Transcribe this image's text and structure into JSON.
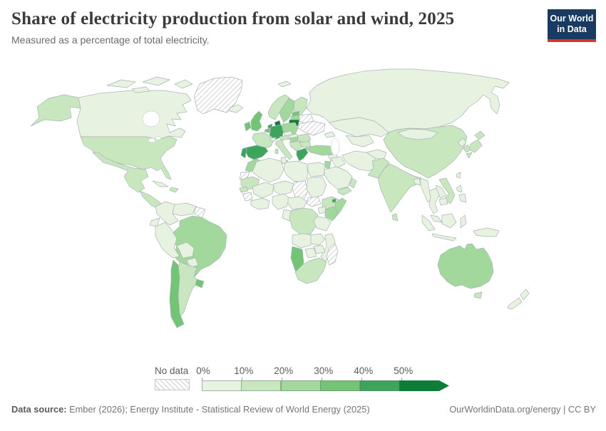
{
  "header": {
    "title": "Share of electricity production from solar and wind, 2025",
    "subtitle": "Measured as a percentage of total electricity."
  },
  "logo": {
    "line1": "Our World",
    "line2": "in Data"
  },
  "legend": {
    "no_data_label": "No data",
    "ticks": [
      "0%",
      "10%",
      "20%",
      "30%",
      "40%",
      "50%"
    ],
    "band_order": [
      "b1",
      "b2",
      "b3",
      "b4",
      "b5",
      "b6"
    ],
    "band_labels": [
      "0-10%",
      "10-20%",
      "20-30%",
      "30-40%",
      "40-50%",
      "50%+"
    ]
  },
  "footer": {
    "source_label": "Data source:",
    "source_text": " Ember (2026); Energy Institute - Statistical Review of World Energy (2025)",
    "link": "OurWorldinData.org/energy",
    "separator": " | ",
    "license": "CC BY"
  },
  "map": {
    "palette": {
      "b1": "#e7f3e0",
      "b2": "#c9e7bf",
      "b3": "#a2d89b",
      "b4": "#74c476",
      "b5": "#3ca55b",
      "b6": "#0f7d38"
    },
    "no_data_key": "nodata",
    "countries": {
      "alaska": "b2",
      "canada": "b1",
      "canada_arctic": "b1",
      "greenland": "nodata",
      "iceland": "b1",
      "usa": "b2",
      "mexico": "b2",
      "central_america": "b2",
      "cuba": "b1",
      "hispaniola": "b2",
      "colombia": "b1",
      "venezuela": "b1",
      "guyana": "nodata",
      "brazil": "b3",
      "peru": "b1",
      "ecuador": "b1",
      "bolivia": "b1",
      "paraguay": "b1",
      "chile": "b4",
      "argentina": "b2",
      "uruguay": "b4",
      "svalbard": "b1",
      "norway": "b2",
      "sweden": "b3",
      "finland": "b2",
      "denmark": "b6",
      "estonia": "b4",
      "latvia": "b3",
      "lithuania": "b6",
      "united_kingdom": "b4",
      "ireland": "b4",
      "netherlands": "b5",
      "belgium": "b4",
      "germany": "b5",
      "france": "b2",
      "spain": "b5",
      "portugal": "b5",
      "switzerland": "b1",
      "italy": "b2",
      "austria": "b2",
      "czechia": "b1",
      "poland": "b3",
      "slovakia": "b1",
      "hungary": "b3",
      "romania": "b2",
      "balkans": "b2",
      "bulgaria": "b2",
      "greece": "b5",
      "belarus": "nodata",
      "ukraine": "nodata",
      "russia": "b1",
      "kazakhstan": "b1",
      "central_asia": "b1",
      "caucasus": "b1",
      "turkey": "b3",
      "syria": "b1",
      "iraq": "b1",
      "levant": "b3",
      "saudi_arabia": "b1",
      "yemen": "b2",
      "oman": "b2",
      "iran": "b1",
      "afghanistan": "b1",
      "pakistan": "b2",
      "india": "b2",
      "sri_lanka": "b2",
      "bangladesh": "b1",
      "china": "b2",
      "mongolia": "b1",
      "north_korea": "b1",
      "south_korea": "b2",
      "japan": "b2",
      "taiwan": "b1",
      "myanmar": "b1",
      "thailand": "b1",
      "laos": "b1",
      "vietnam": "b2",
      "cambodia": "b1",
      "malaysia": "b1",
      "indonesia": "b1",
      "philippines": "b1",
      "new_guinea": "b1",
      "australia": "b3",
      "tasmania": "b2",
      "new_zealand": "b1",
      "morocco": "b3",
      "western_sahara": "nodata",
      "algeria": "b1",
      "tunisia": "b1",
      "libya": "b1",
      "egypt": "b1",
      "mauritania": "b2",
      "senegal": "b2",
      "guinea": "nodata",
      "mali": "b1",
      "niger": "b1",
      "chad": "nodata",
      "sudan": "b1",
      "ethiopia": "b2",
      "djibouti": "b5",
      "somalia": "b3",
      "west_africa": "b1",
      "nigeria": "b1",
      "cameroon": "b1",
      "south_sudan": "nodata",
      "uganda": "b1",
      "kenya": "b3",
      "drc": "b2",
      "congo_gabon": "b1",
      "tanzania": "b1",
      "angola": "b1",
      "zambia": "b1",
      "mozambique": "b1",
      "zimbabwe": "b1",
      "botswana": "b1",
      "namibia": "b4",
      "south_africa": "b2",
      "madagascar": "nodata"
    }
  }
}
